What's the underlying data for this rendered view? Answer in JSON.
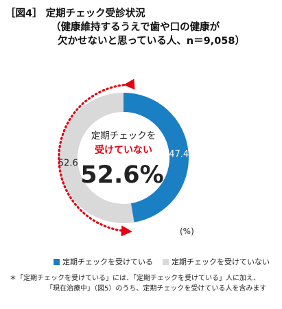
{
  "title": {
    "line1": "［図4］ 定期チェック受診状況",
    "line2": "（健康維持するうえで歯や口の健康が",
    "line3": "欠かせないと思っている人、n＝9,058）"
  },
  "chart_data": {
    "type": "donut",
    "series": [
      {
        "name": "定期チェックを受けている",
        "value": 47.4,
        "label": "47.4",
        "color": "#1b7fc4"
      },
      {
        "name": "定期チェックを受けていない",
        "value": 52.6,
        "label": "52.6",
        "color": "#d9d9d9"
      }
    ],
    "center": {
      "line1": "定期チェックを",
      "line2": "受けていない",
      "value": "52.6%"
    },
    "unit": "(%)",
    "accent_color": "#e60012"
  },
  "legend": {
    "items": [
      {
        "label": "定期チェックを受けている",
        "color": "#1b7fc4"
      },
      {
        "label": "定期チェックを受けていない",
        "color": "#d9d9d9"
      }
    ]
  },
  "note": {
    "line1": "＊「定期チェックを受けている」には、「定期チェックを受けている」人に加え、",
    "line2": "「現在治療中」（図5）のうち、定期チェックを受けている人を含みます"
  }
}
